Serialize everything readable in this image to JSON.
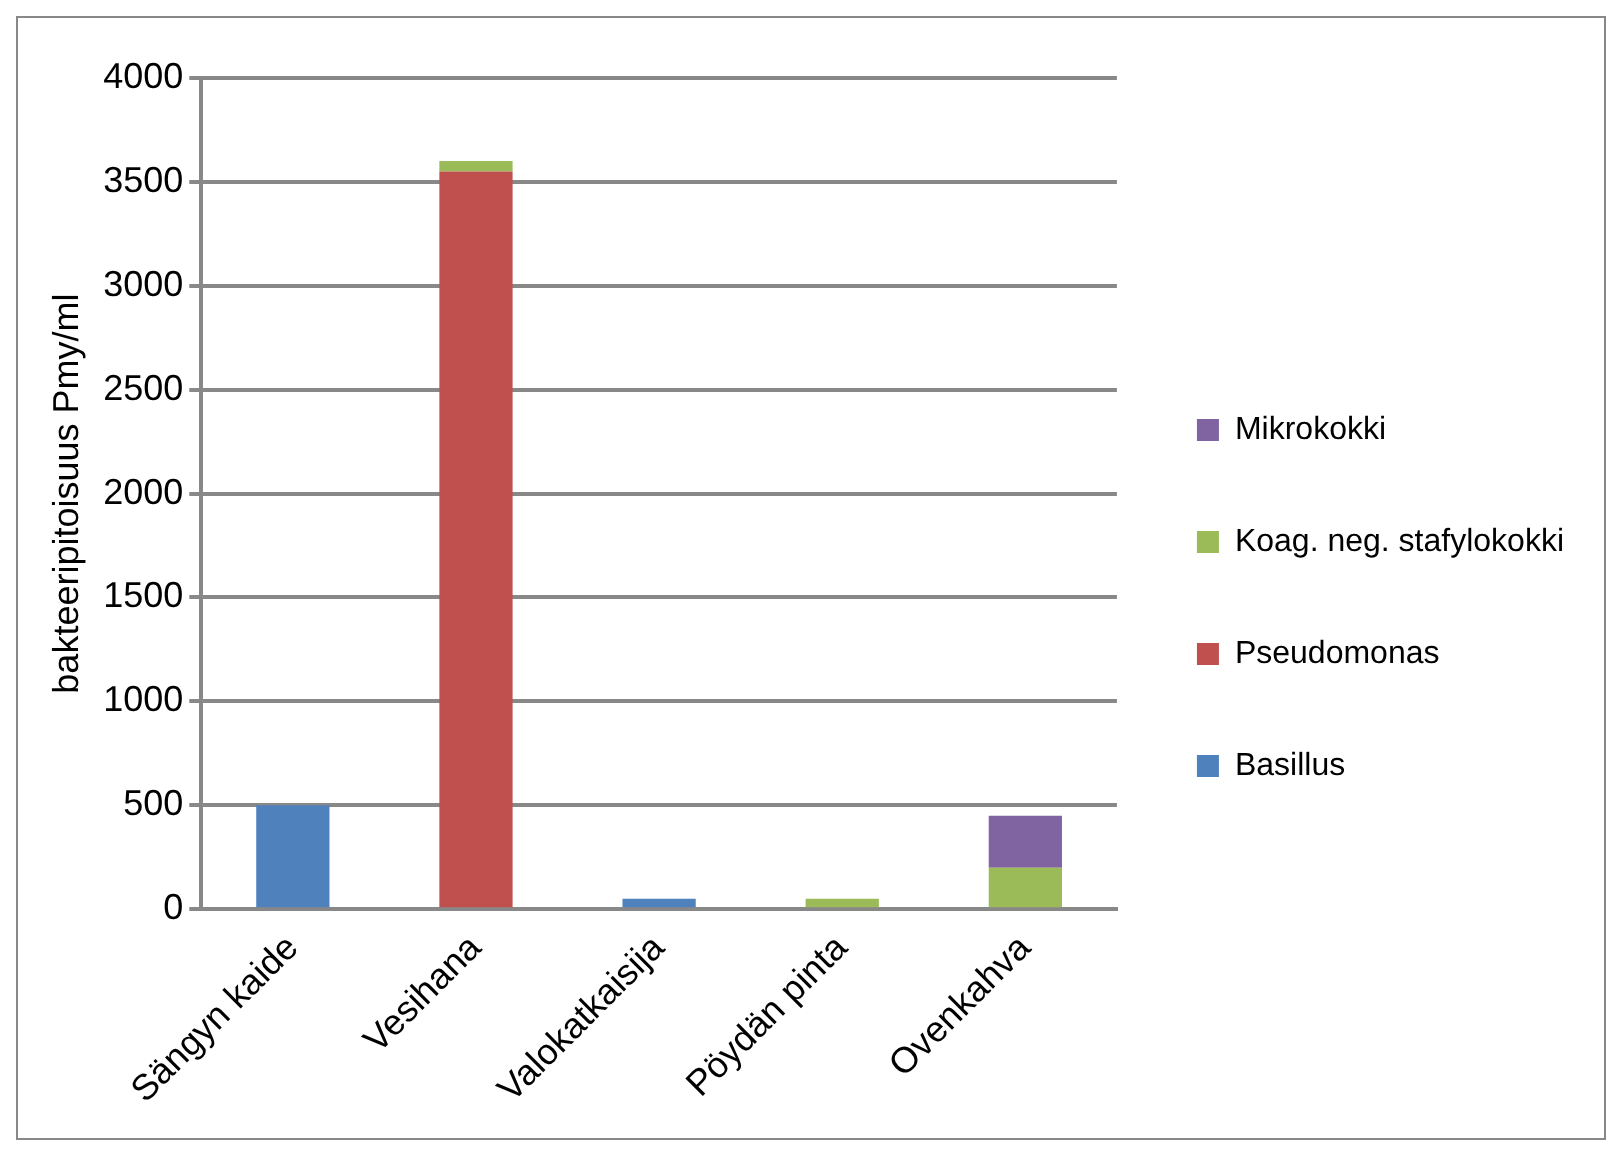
{
  "chart_data": {
    "type": "bar",
    "stacked": true,
    "ylabel": "bakteeripitoisuus Pmy/ml",
    "categories": [
      "Sängyn kaide",
      "Vesihana",
      "Valokatkaisija",
      "Pöydän pinta",
      "Ovenkahva"
    ],
    "series": [
      {
        "name": "Basillus",
        "color": "#4f81bd",
        "values": [
          500,
          0,
          50,
          0,
          0
        ]
      },
      {
        "name": "Pseudomonas",
        "color": "#c0504d",
        "values": [
          0,
          3550,
          0,
          0,
          0
        ]
      },
      {
        "name": "Koag. neg. stafylokokki",
        "color": "#9bbb59",
        "values": [
          0,
          50,
          0,
          50,
          200
        ]
      },
      {
        "name": "Mikrokokki",
        "color": "#8064a2",
        "values": [
          0,
          0,
          0,
          0,
          250
        ]
      }
    ],
    "ylim": [
      0,
      4000
    ],
    "yticks": [
      0,
      500,
      1000,
      1500,
      2000,
      2500,
      3000,
      3500,
      4000
    ],
    "grid": "y",
    "legend": "right"
  }
}
